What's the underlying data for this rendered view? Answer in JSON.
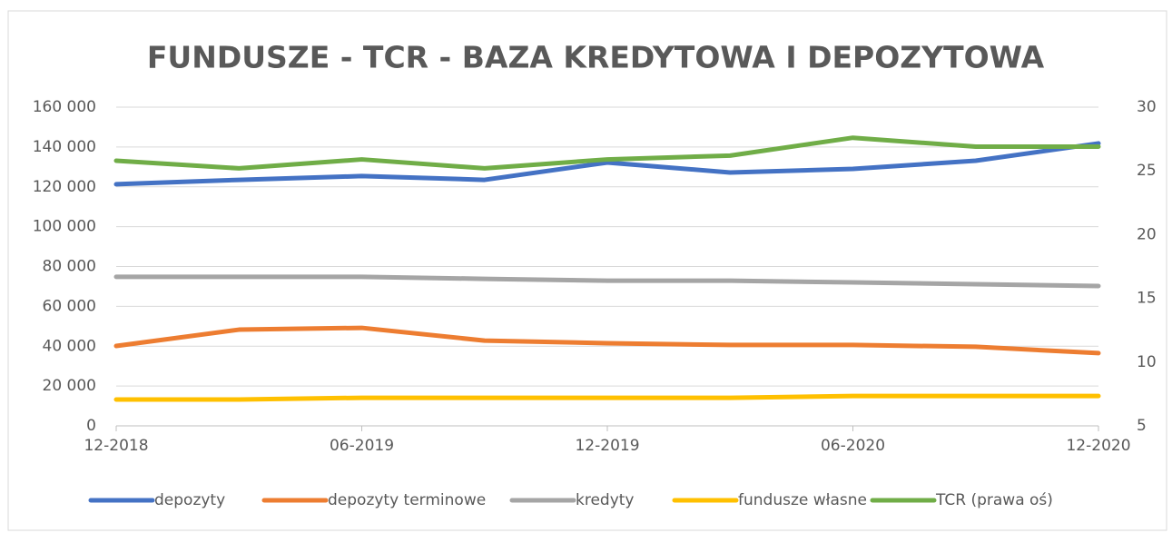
{
  "chart_data": {
    "type": "line",
    "title": "FUNDUSZE - TCR - BAZA KREDYTOWA I DEPOZYTOWA",
    "categories": [
      "12-2018",
      null,
      "06-2019",
      null,
      "12-2019",
      null,
      "06-2020",
      null,
      "12-2020"
    ],
    "series": [
      {
        "name": "depozyty",
        "color": "#4472c4",
        "values": [
          121300,
          123500,
          125400,
          123500,
          132200,
          127200,
          129000,
          133100,
          141800
        ]
      },
      {
        "name": "depozyty terminowe",
        "color": "#ed7d31",
        "values": [
          40100,
          48300,
          49200,
          42800,
          41500,
          40600,
          40600,
          39700,
          36500
        ]
      },
      {
        "name": "kredyty",
        "color": "#a5a5a5",
        "values": [
          74800,
          74800,
          74800,
          73800,
          72900,
          72900,
          72000,
          71100,
          70200
        ]
      },
      {
        "name": "fundusze własne",
        "color": "#ffc000",
        "values": [
          13200,
          13200,
          14100,
          14100,
          14100,
          14100,
          15000,
          15000,
          15000
        ]
      },
      {
        "name": "TCR (prawa oś)",
        "color": "#70ad47",
        "axis": "y2",
        "values": [
          25.8,
          25.2,
          25.9,
          25.2,
          25.9,
          26.2,
          27.6,
          26.9,
          26.9
        ]
      }
    ],
    "ylim": [
      0,
      160000
    ],
    "yticks": [
      0,
      {
        "value": 20000,
        "label": "20 000"
      },
      {
        "value": 40000,
        "label": "40 000"
      },
      {
        "value": 60000,
        "label": "60 000"
      },
      {
        "value": 80000,
        "label": "80 000"
      },
      {
        "value": 100000,
        "label": "100 000"
      },
      {
        "value": 120000,
        "label": "120 000"
      },
      {
        "value": 140000,
        "label": "140 000"
      },
      {
        "value": 160000,
        "label": "160 000"
      }
    ],
    "y2lim": [
      5,
      30
    ],
    "y2ticks": [
      5,
      10,
      15,
      20,
      25,
      30
    ],
    "grid": true,
    "legend": "bottom"
  }
}
